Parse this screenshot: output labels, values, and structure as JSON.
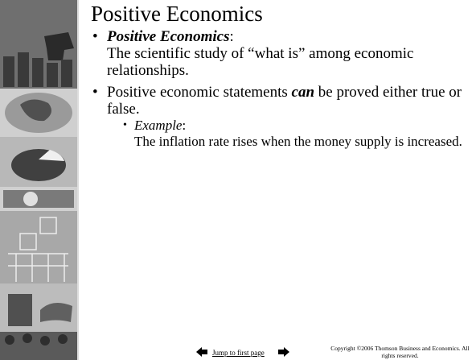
{
  "title": "Positive Economics",
  "bullets": [
    {
      "runs": [
        "Positive Economics",
        ":"
      ],
      "body": "The scientific study of “what is” among economic relationships."
    },
    {
      "runs": [
        "Positive economic statements ",
        "can",
        " be proved either true or false."
      ]
    }
  ],
  "sub_bullets": [
    {
      "runs": [
        "Example",
        ":"
      ],
      "body": "The inflation rate rises when the money supply is increased."
    }
  ],
  "footer": {
    "link": "Jump to first page",
    "copyright": "Copyright ©2006  Thomson Business and Economics. All rights reserved."
  }
}
